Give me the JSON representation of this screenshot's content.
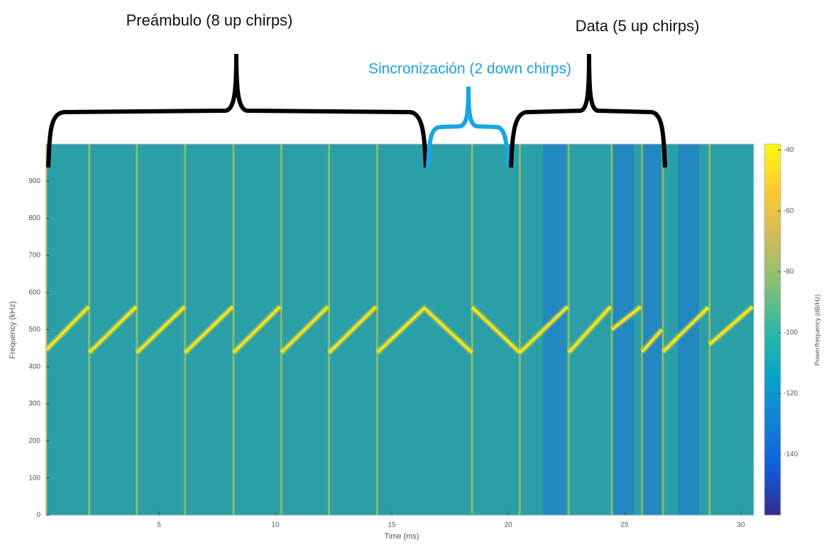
{
  "chart_data": {
    "type": "spectrogram",
    "xlabel": "Time (ms)",
    "ylabel": "Frequency (kHz)",
    "colorbar_label": "Power/frequency (dB/Hz)",
    "xlim": [
      0.15,
      30.55
    ],
    "ylim": [
      0,
      1000
    ],
    "xticks": [
      5,
      10,
      15,
      20,
      25,
      30
    ],
    "yticks": [
      0,
      100,
      200,
      300,
      400,
      500,
      600,
      700,
      800,
      900
    ],
    "clim": [
      -160,
      -38
    ],
    "cticks": [
      -40,
      -60,
      -80,
      -100,
      -120,
      -140
    ],
    "colormap": [
      "#352a87",
      "#0f5cdd",
      "#1481d6",
      "#06a4ca",
      "#2eb7a4",
      "#87bf77",
      "#d1bb59",
      "#fec832",
      "#f9fb0e"
    ],
    "background_color": "#2a9fa8",
    "chirp_color": "#f7e11f",
    "band_color": "#2080c8",
    "chirps": {
      "x": [
        0.15,
        1.98,
        null,
        2.0,
        4.02,
        null,
        4.05,
        6.1,
        null,
        6.12,
        8.17,
        null,
        8.2,
        10.2,
        null,
        10.25,
        12.26,
        null,
        12.3,
        14.33,
        null,
        14.37,
        16.4,
        18.45,
        null,
        18.45,
        20.5,
        null,
        20.5,
        22.55,
        null,
        22.6,
        24.4,
        null,
        24.45,
        25.7,
        null,
        25.75,
        26.6,
        null,
        26.65,
        28.6,
        null,
        28.65,
        30.5
      ],
      "y": [
        445,
        562,
        null,
        438,
        562,
        null,
        438,
        562,
        null,
        438,
        562,
        null,
        438,
        562,
        null,
        438,
        562,
        null,
        438,
        562,
        null,
        438,
        558,
        438,
        null,
        560,
        438,
        null,
        438,
        562,
        null,
        438,
        562,
        null,
        500,
        562,
        null,
        440,
        500,
        null,
        440,
        560,
        null,
        460,
        562
      ]
    },
    "low_power_bands": [
      [
        21.5,
        22.5
      ],
      [
        24.5,
        25.4
      ],
      [
        25.7,
        26.6
      ],
      [
        27.3,
        28.2
      ]
    ],
    "annotations": {
      "preamble": "Preámbulo (8 up chirps)",
      "sync": "Sincronización (2 down chirps)",
      "data": "Data (5 up chirps)"
    }
  }
}
